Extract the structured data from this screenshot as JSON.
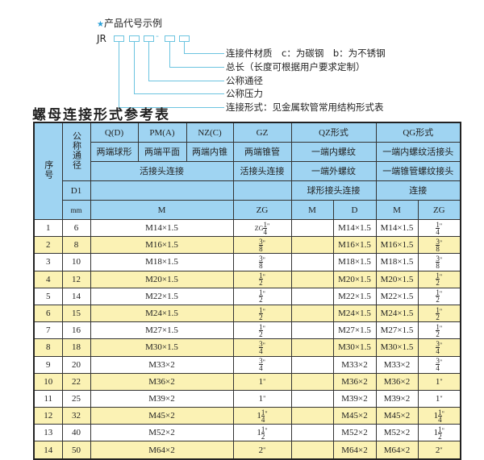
{
  "diagram": {
    "heading": "产品代号示例",
    "star_icon": "star-icon",
    "code_prefix": "JR",
    "dash": "-",
    "labels": [
      "连接件材质　c：为碳钢　b：为不锈钢",
      "总长（长度可根据用户要求定制）",
      "公称通径",
      "公称压力",
      "连接形式：见金属软管常用结构形式表"
    ],
    "accent": "#6cc4e0"
  },
  "title": "螺母连接形式参考表",
  "table": {
    "header": {
      "seq": "序号",
      "dn": "公称通径",
      "qd": "Q(D)",
      "pm": "PM(A)",
      "nz": "NZ(C)",
      "gz": "GZ",
      "qz": "QZ形式",
      "qg": "QG形式",
      "qd2": "两端球形",
      "pm2": "两端平面",
      "nz2": "两端内锥",
      "gz2": "两端锥管",
      "qz2": "一端内螺纹",
      "qg2": "一端内螺纹活接头",
      "huojie": "活接头连接",
      "gz3": "活接头连接",
      "qz3": "一端外螺纹",
      "qg3": "一端锥管螺纹接头",
      "d1": "D1",
      "qz4": "球形接头连接",
      "qg4": "连接",
      "mm": "mm",
      "m": "M",
      "zg": "ZG",
      "qzm": "M",
      "qzd": "D",
      "qgm": "M",
      "qgzg": "ZG"
    },
    "rows": [
      {
        "no": "1",
        "dn": "6",
        "m": "M14×1.5",
        "zg_prefix": "ZG",
        "zg_whole": "",
        "zg_num": "1",
        "zg_den": "4",
        "qzm": "",
        "qzd": "M14×1.5",
        "qgm": "M14×1.5",
        "qg_whole": "",
        "qg_num": "1",
        "qg_den": "4"
      },
      {
        "no": "2",
        "dn": "8",
        "m": "M16×1.5",
        "zg_prefix": "",
        "zg_whole": "",
        "zg_num": "3",
        "zg_den": "8",
        "qzm": "",
        "qzd": "M16×1.5",
        "qgm": "M16×1.5",
        "qg_whole": "",
        "qg_num": "3",
        "qg_den": "8"
      },
      {
        "no": "3",
        "dn": "10",
        "m": "M18×1.5",
        "zg_prefix": "",
        "zg_whole": "",
        "zg_num": "3",
        "zg_den": "8",
        "qzm": "",
        "qzd": "M18×1.5",
        "qgm": "M18×1.5",
        "qg_whole": "",
        "qg_num": "3",
        "qg_den": "8"
      },
      {
        "no": "4",
        "dn": "12",
        "m": "M20×1.5",
        "zg_prefix": "",
        "zg_whole": "",
        "zg_num": "1",
        "zg_den": "2",
        "qzm": "",
        "qzd": "M20×1.5",
        "qgm": "M20×1.5",
        "qg_whole": "",
        "qg_num": "1",
        "qg_den": "2"
      },
      {
        "no": "5",
        "dn": "14",
        "m": "M22×1.5",
        "zg_prefix": "",
        "zg_whole": "",
        "zg_num": "1",
        "zg_den": "2",
        "qzm": "",
        "qzd": "M22×1.5",
        "qgm": "M22×1.5",
        "qg_whole": "",
        "qg_num": "1",
        "qg_den": "2"
      },
      {
        "no": "6",
        "dn": "15",
        "m": "M24×1.5",
        "zg_prefix": "",
        "zg_whole": "",
        "zg_num": "1",
        "zg_den": "2",
        "qzm": "",
        "qzd": "M24×1.5",
        "qgm": "M24×1.5",
        "qg_whole": "",
        "qg_num": "1",
        "qg_den": "2"
      },
      {
        "no": "7",
        "dn": "16",
        "m": "M27×1.5",
        "zg_prefix": "",
        "zg_whole": "",
        "zg_num": "1",
        "zg_den": "2",
        "qzm": "",
        "qzd": "M27×1.5",
        "qgm": "M27×1.5",
        "qg_whole": "",
        "qg_num": "1",
        "qg_den": "2"
      },
      {
        "no": "8",
        "dn": "18",
        "m": "M30×1.5",
        "zg_prefix": "",
        "zg_whole": "",
        "zg_num": "3",
        "zg_den": "4",
        "qzm": "",
        "qzd": "M30×1.5",
        "qgm": "M30×1.5",
        "qg_whole": "",
        "qg_num": "3",
        "qg_den": "4"
      },
      {
        "no": "9",
        "dn": "20",
        "m": "M33×2",
        "zg_prefix": "",
        "zg_whole": "",
        "zg_num": "3",
        "zg_den": "4",
        "qzm": "",
        "qzd": "M33×2",
        "qgm": "M33×2",
        "qg_whole": "",
        "qg_num": "3",
        "qg_den": "4"
      },
      {
        "no": "10",
        "dn": "22",
        "m": "M36×2",
        "zg_prefix": "",
        "zg_whole": "1",
        "zg_num": "",
        "zg_den": "",
        "qzm": "",
        "qzd": "M36×2",
        "qgm": "M36×2",
        "qg_whole": "1",
        "qg_num": "",
        "qg_den": ""
      },
      {
        "no": "11",
        "dn": "25",
        "m": "M39×2",
        "zg_prefix": "",
        "zg_whole": "1",
        "zg_num": "",
        "zg_den": "",
        "qzm": "",
        "qzd": "M39×2",
        "qgm": "M39×2",
        "qg_whole": "1",
        "qg_num": "",
        "qg_den": ""
      },
      {
        "no": "12",
        "dn": "32",
        "m": "M45×2",
        "zg_prefix": "",
        "zg_whole": "1",
        "zg_num": "1",
        "zg_den": "4",
        "qzm": "",
        "qzd": "M45×2",
        "qgm": "M45×2",
        "qg_whole": "1",
        "qg_num": "1",
        "qg_den": "4"
      },
      {
        "no": "13",
        "dn": "40",
        "m": "M52×2",
        "zg_prefix": "",
        "zg_whole": "1",
        "zg_num": "1",
        "zg_den": "2",
        "qzm": "",
        "qzd": "M52×2",
        "qgm": "M52×2",
        "qg_whole": "1",
        "qg_num": "1",
        "qg_den": "2"
      },
      {
        "no": "14",
        "dn": "50",
        "m": "M64×2",
        "zg_prefix": "",
        "zg_whole": "2",
        "zg_num": "",
        "zg_den": "",
        "qzm": "",
        "qzd": "M64×2",
        "qgm": "M64×2",
        "qg_whole": "2",
        "qg_num": "",
        "qg_den": ""
      }
    ],
    "inch_mark": "\"",
    "colors": {
      "header": "#9fd4f2",
      "stripe": "#fbf2b4",
      "border": "#333333"
    }
  }
}
